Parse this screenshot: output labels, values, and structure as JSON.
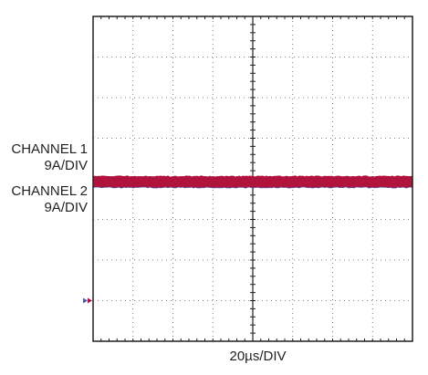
{
  "chart_data": {
    "type": "line",
    "title": "",
    "xlabel": "20µs/DIV",
    "ylabel": "",
    "grid": true,
    "divisions": {
      "x": 8,
      "y": 8
    },
    "x_range_div": [
      0,
      8
    ],
    "y_range_div": [
      0,
      8
    ],
    "ground_marker_div": 1,
    "series": [
      {
        "name": "CHANNEL 1",
        "scale": "9A/DIV",
        "level_div": 3.93,
        "thickness_div": 0.25,
        "color": "#b0143c"
      },
      {
        "name": "CHANNEL 2",
        "scale": "9A/DIV",
        "level_div": 3.83,
        "thickness_div": 0.08,
        "color": "#4a5cb8"
      }
    ]
  },
  "labels": {
    "ch1_name": "CHANNEL 1",
    "ch1_scale": "9A/DIV",
    "ch2_name": "CHANNEL 2",
    "ch2_scale": "9A/DIV",
    "time_scale": "20µs/DIV"
  }
}
